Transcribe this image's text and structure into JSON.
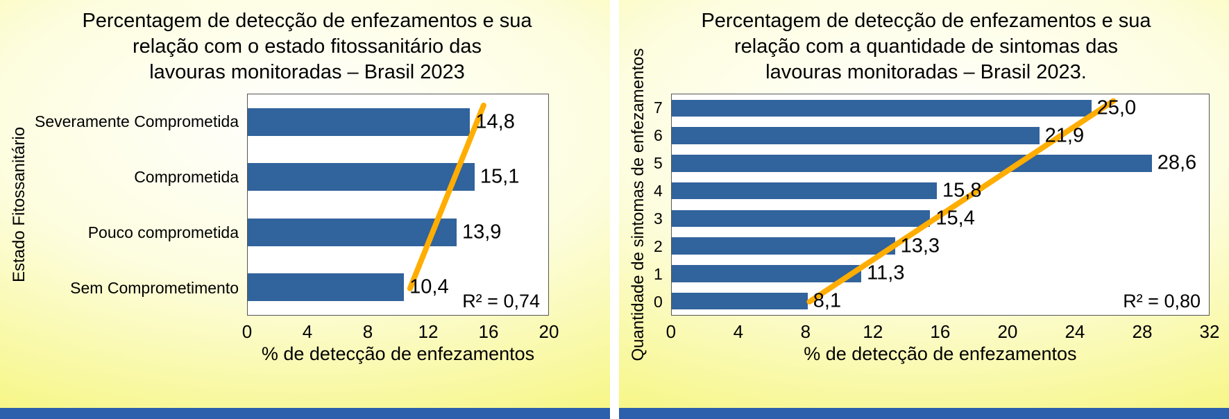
{
  "page": {
    "background_yellow": "#f5f575",
    "background_center": "#fdfddf",
    "bottom_bar_color": "#2c5fac"
  },
  "chart_data": [
    {
      "type": "bar",
      "orientation": "horizontal",
      "title": "Percentagem de detecção de enfezamentos e sua relação com o estado fitossanitário das lavouras monitoradas – Brasil 2023",
      "title_lines": [
        "Percentagem de detecção de enfezamentos e sua",
        "relação com o estado fitossanitário das",
        "lavouras monitoradas – Brasil 2023"
      ],
      "ylabel": "Estado Fitossanitário",
      "xlabel": "% de detecção de enfezamentos",
      "categories": [
        "Severamente Comprometida",
        "Comprometida",
        "Pouco comprometida",
        "Sem Comprometimento"
      ],
      "values": [
        14.8,
        15.1,
        13.9,
        10.4
      ],
      "value_labels": [
        "14,8",
        "15,1",
        "13,9",
        "10,4"
      ],
      "xlim": [
        0,
        20
      ],
      "xticks": [
        0,
        4,
        8,
        12,
        16,
        20
      ],
      "r2_label": "R² = 0,74",
      "bar_color": "#31639c",
      "grid": false,
      "legend": false,
      "trendline": {
        "color": "#ffad00",
        "x1": 10.8,
        "y1_frac": 0.88,
        "x2": 15.7,
        "y2_frac": 0.05
      }
    },
    {
      "type": "bar",
      "orientation": "horizontal",
      "title": "Percentagem de detecção de enfezamentos e sua relação com a quantidade de sintomas das lavouras monitoradas – Brasil 2023.",
      "title_lines": [
        "Percentagem de detecção de enfezamentos e sua",
        "relação com a quantidade de sintomas das",
        "lavouras monitoradas – Brasil 2023."
      ],
      "ylabel": "Quantidade de sintomas de enfezamentos",
      "xlabel": "% de detecção de enfezamentos",
      "categories": [
        "7",
        "6",
        "5",
        "4",
        "3",
        "2",
        "1",
        "0"
      ],
      "values": [
        25.0,
        21.9,
        28.6,
        15.8,
        15.4,
        13.3,
        11.3,
        8.1
      ],
      "value_labels": [
        "25,0",
        "21,9",
        "28,6",
        "15,8",
        "15,4",
        "13,3",
        "11,3",
        "8,1"
      ],
      "xlim": [
        0,
        32
      ],
      "xticks": [
        0,
        4,
        8,
        12,
        16,
        20,
        24,
        28,
        32
      ],
      "r2_label": "R² = 0,80",
      "bar_color": "#31639c",
      "grid": false,
      "legend": false,
      "trendline": {
        "color": "#ffad00",
        "x1": 8.2,
        "y1_frac": 0.94,
        "x2": 26.3,
        "y2_frac": 0.03
      }
    }
  ]
}
